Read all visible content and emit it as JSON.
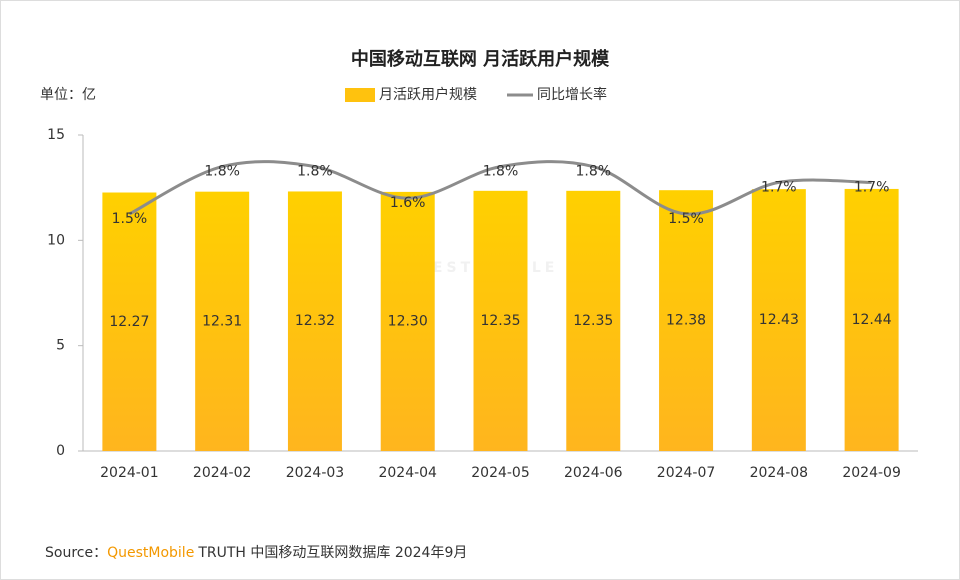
{
  "chart_data": {
    "type": "bar",
    "title": "中国移动互联网 月活跃用户规模",
    "unit_label": "单位：亿",
    "watermark": "QUESTMOBILE",
    "categories": [
      "2024-01",
      "2024-02",
      "2024-03",
      "2024-04",
      "2024-05",
      "2024-06",
      "2024-07",
      "2024-08",
      "2024-09"
    ],
    "series": [
      {
        "name": "月活跃用户规模",
        "type": "bar",
        "color": "#ffc20e",
        "values": [
          12.27,
          12.31,
          12.32,
          12.3,
          12.35,
          12.35,
          12.38,
          12.43,
          12.44
        ],
        "value_labels": [
          "12.27",
          "12.31",
          "12.32",
          "12.30",
          "12.35",
          "12.35",
          "12.38",
          "12.43",
          "12.44"
        ]
      },
      {
        "name": "同比增长率",
        "type": "line",
        "axis": "y2",
        "color": "#8c8c8c",
        "values": [
          1.5,
          1.8,
          1.8,
          1.6,
          1.8,
          1.8,
          1.5,
          1.7,
          1.7
        ],
        "value_labels": [
          "1.5%",
          "1.8%",
          "1.8%",
          "1.6%",
          "1.8%",
          "1.8%",
          "1.5%",
          "1.7%",
          "1.7%"
        ]
      }
    ],
    "ylim": [
      0,
      15
    ],
    "yticks": [
      0,
      5,
      10,
      15
    ],
    "y2lim": [
      0,
      2
    ],
    "legend": "top",
    "source": {
      "label": "Source：",
      "brand": "QuestMobile",
      "text": "TRUTH 中国移动互联网数据库 2024年9月"
    }
  }
}
